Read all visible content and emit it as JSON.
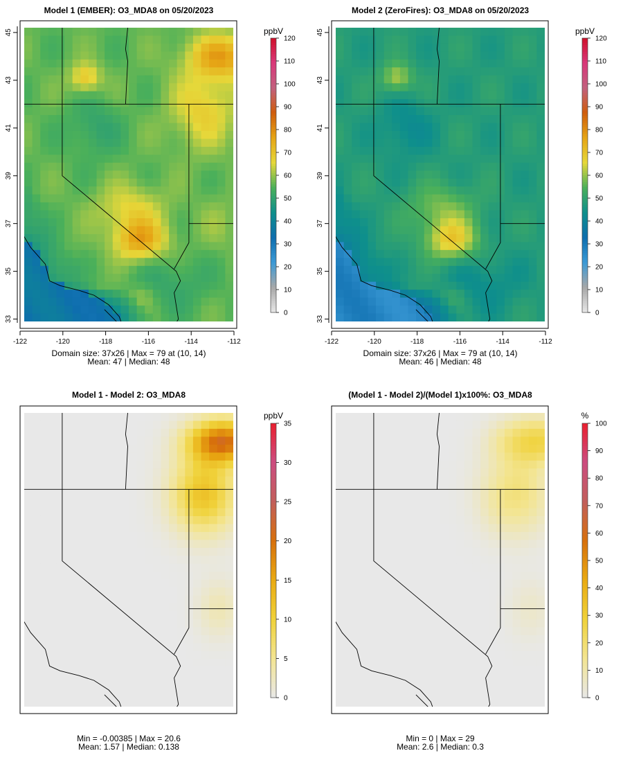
{
  "chart_data": [
    {
      "type": "heatmap",
      "title": "Model 1 (EMBER): O3_MDA8 on 05/20/2023",
      "unit": "ppbV",
      "colorbar_ticks": [
        "120",
        "110",
        "100",
        "90",
        "80",
        "70",
        "60",
        "50",
        "40",
        "30",
        "20",
        "10",
        "0"
      ],
      "colorbar_range": [
        0,
        120
      ],
      "palette": "ozone",
      "x_ticks": [
        "-122",
        "-120",
        "-118",
        "-116",
        "-114",
        "-112"
      ],
      "y_ticks": [
        "33",
        "35",
        "37",
        "39",
        "41",
        "43",
        "45"
      ],
      "lon_range": [
        -121.8,
        -111.9
      ],
      "lat_range": [
        32.9,
        45.2
      ],
      "stats_line1": "Domain size: 37x26 | Max = 79 at (10, 14)",
      "stats_line2": "Mean: 47 |  Median: 48",
      "stats": {
        "nx": 37,
        "ny": 26,
        "max": 79,
        "max_at": [
          10,
          14
        ],
        "mean": 47,
        "median": 48
      },
      "show_axes": true
    },
    {
      "type": "heatmap",
      "title": "Model 2 (ZeroFires): O3_MDA8 on 05/20/2023",
      "unit": "ppbV",
      "colorbar_ticks": [
        "120",
        "110",
        "100",
        "90",
        "80",
        "70",
        "60",
        "50",
        "40",
        "30",
        "20",
        "10",
        "0"
      ],
      "colorbar_range": [
        0,
        120
      ],
      "palette": "ozone",
      "x_ticks": [
        "-122",
        "-120",
        "-118",
        "-116",
        "-114",
        "-112"
      ],
      "y_ticks": [
        "33",
        "35",
        "37",
        "39",
        "41",
        "43",
        "45"
      ],
      "lon_range": [
        -121.8,
        -111.9
      ],
      "lat_range": [
        32.9,
        45.2
      ],
      "stats_line1": "Domain size: 37x26 | Max = 79 at (10, 14)",
      "stats_line2": "Mean: 46 |  Median: 48",
      "stats": {
        "nx": 37,
        "ny": 26,
        "max": 79,
        "max_at": [
          10,
          14
        ],
        "mean": 46,
        "median": 48
      },
      "show_axes": true
    },
    {
      "type": "heatmap",
      "title": "Model 1 - Model 2: O3_MDA8",
      "unit": "ppbV",
      "colorbar_ticks": [
        "35",
        "30",
        "25",
        "20",
        "15",
        "10",
        "5",
        "0"
      ],
      "colorbar_range": [
        0,
        35
      ],
      "palette": "diff",
      "x_ticks": [],
      "y_ticks": [],
      "lon_range": [
        -121.8,
        -111.9
      ],
      "lat_range": [
        32.9,
        45.2
      ],
      "stats_line1": "Min = -0.00385 | Max = 20.6",
      "stats_line2": "Mean: 1.57 |  Median: 0.138",
      "stats": {
        "min": -0.00385,
        "max": 20.6,
        "mean": 1.57,
        "median": 0.138
      },
      "show_axes": false
    },
    {
      "type": "heatmap",
      "title": "(Model 1 - Model 2)/(Model 1)x100%: O3_MDA8",
      "unit": "%",
      "colorbar_ticks": [
        "100",
        "90",
        "80",
        "70",
        "60",
        "50",
        "40",
        "30",
        "20",
        "10",
        "0"
      ],
      "colorbar_range": [
        0,
        100
      ],
      "palette": "diff",
      "x_ticks": [],
      "y_ticks": [],
      "lon_range": [
        -121.8,
        -111.9
      ],
      "lat_range": [
        32.9,
        45.2
      ],
      "stats_line1": "Min = 0 | Max = 29",
      "stats_line2": "Mean: 2.6 |  Median: 0.3",
      "stats": {
        "min": 0,
        "max": 29,
        "mean": 2.6,
        "median": 0.3
      },
      "show_axes": false
    }
  ],
  "colors": {
    "ozone_scale": [
      "#e8e8e8",
      "#a8a8a8",
      "#3b9ad6",
      "#0e6eae",
      "#0e8f8c",
      "#4bb05a",
      "#e6d83a",
      "#e6a515",
      "#cf5d0c",
      "#c2617e",
      "#d9387a",
      "#d0102a"
    ],
    "diff_scale": [
      "#e8e8e8",
      "#f3e592",
      "#f0d23a",
      "#e9aa12",
      "#d7700c",
      "#c25f5b",
      "#cc4d80",
      "#ea1f2f"
    ],
    "frame": "#000000",
    "boundary": "#000000"
  }
}
